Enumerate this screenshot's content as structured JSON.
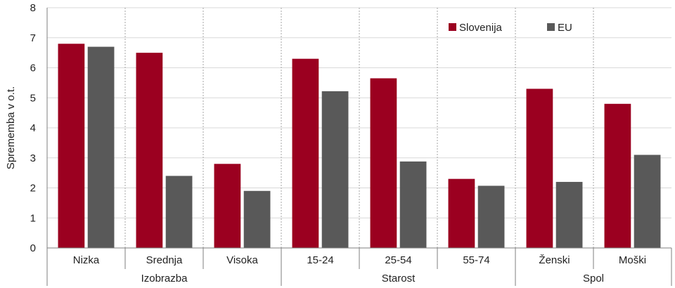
{
  "chart_data": {
    "type": "bar",
    "title": "",
    "ylabel": "Sprememba v o.t.",
    "ylim": [
      0,
      8
    ],
    "yticks": [
      0,
      1,
      2,
      3,
      4,
      5,
      6,
      7,
      8
    ],
    "grid": true,
    "legend_position": "top-right",
    "categories": [
      "Nizka",
      "Srednja",
      "Visoka",
      "15-24",
      "25-54",
      "55-74",
      "Ženski",
      "Moški"
    ],
    "groups": [
      {
        "label": "Izobrazba",
        "span": 3
      },
      {
        "label": "Starost",
        "span": 3
      },
      {
        "label": "Spol",
        "span": 2
      }
    ],
    "series": [
      {
        "name": "Slovenija",
        "color": "#9b0020",
        "values": [
          6.8,
          6.5,
          2.8,
          6.3,
          5.65,
          2.3,
          5.3,
          4.8
        ]
      },
      {
        "name": "EU",
        "color": "#595959",
        "values": [
          6.7,
          2.4,
          1.9,
          5.22,
          2.88,
          2.07,
          2.2,
          3.1
        ]
      }
    ]
  }
}
